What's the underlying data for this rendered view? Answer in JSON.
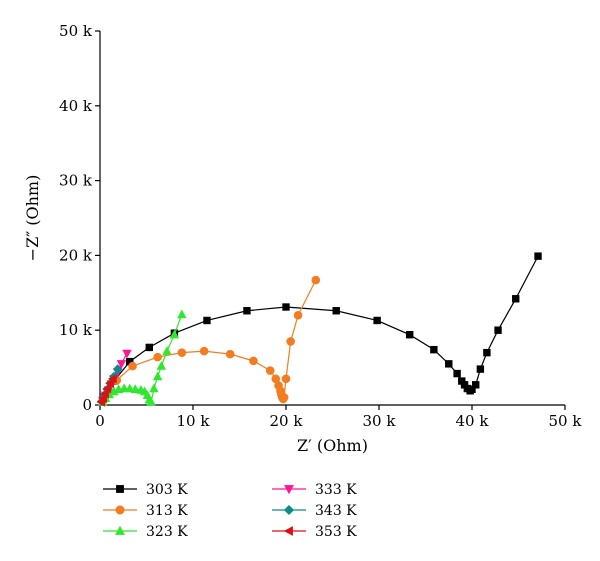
{
  "chart_data": {
    "type": "scatter",
    "title": "",
    "xlabel": "Z′ (Ohm)",
    "ylabel": "−Z″ (Ohm)",
    "xlim": [
      0,
      50000
    ],
    "ylim": [
      0,
      50000
    ],
    "x_ticks": [
      0,
      10000,
      20000,
      30000,
      40000,
      50000
    ],
    "y_ticks": [
      0,
      10000,
      20000,
      30000,
      40000,
      50000
    ],
    "x_tick_labels": [
      "0",
      "10 k",
      "20 k",
      "30 k",
      "40 k",
      "50 k"
    ],
    "y_tick_labels": [
      "0",
      "10 k",
      "20 k",
      "30 k",
      "40 k",
      "50 k"
    ],
    "grid": false,
    "legend_position": "bottom-left, below plot",
    "series": [
      {
        "name": "303 K",
        "color": "#000000",
        "marker": "square",
        "x": [
          800,
          1500,
          3200,
          5300,
          8000,
          11500,
          15800,
          20000,
          25400,
          29800,
          33300,
          35900,
          37500,
          38400,
          38900,
          39200,
          39500,
          39800,
          40000,
          40400,
          40900,
          41600,
          42800,
          44700,
          47100
        ],
        "y": [
          1500,
          3200,
          5800,
          7700,
          9600,
          11300,
          12600,
          13100,
          12600,
          11300,
          9400,
          7400,
          5500,
          4200,
          3200,
          2700,
          2200,
          1900,
          2100,
          2700,
          4800,
          7000,
          10000,
          14200,
          19900
        ]
      },
      {
        "name": "313 K",
        "color": "#f47c20",
        "marker": "circle",
        "x": [
          500,
          1000,
          1800,
          3500,
          6200,
          8800,
          11200,
          14000,
          16500,
          18300,
          18900,
          19200,
          19400,
          19500,
          19600,
          19700,
          19800,
          20000,
          20500,
          21300,
          23200
        ],
        "y": [
          800,
          1800,
          3300,
          5200,
          6400,
          7000,
          7200,
          6800,
          5900,
          4600,
          3500,
          2600,
          1900,
          1400,
          1000,
          800,
          1000,
          3500,
          8500,
          12000,
          16700
        ]
      },
      {
        "name": "323 K",
        "color": "#2ee82e",
        "marker": "triangle-up",
        "x": [
          300,
          600,
          1000,
          1500,
          2000,
          2600,
          3200,
          3800,
          4400,
          4800,
          5100,
          5300,
          5500,
          5800,
          6200,
          6600,
          7200,
          8000,
          8800
        ],
        "y": [
          400,
          900,
          1400,
          1800,
          2100,
          2200,
          2200,
          2100,
          2000,
          1800,
          1300,
          700,
          400,
          2200,
          3800,
          5200,
          7200,
          9400,
          12100
        ]
      },
      {
        "name": "333 K",
        "color": "#ff1493",
        "marker": "triangle-down",
        "x": [
          300,
          600,
          900,
          1200,
          1500,
          1900,
          2300,
          2900
        ],
        "y": [
          600,
          1300,
          2000,
          2800,
          3500,
          4400,
          5500,
          6900
        ]
      },
      {
        "name": "343 K",
        "color": "#0e8b8b",
        "marker": "diamond",
        "x": [
          200,
          500,
          800,
          1100,
          1500,
          1900
        ],
        "y": [
          500,
          1300,
          2100,
          2900,
          3800,
          4800
        ]
      },
      {
        "name": "353 K",
        "color": "#e01010",
        "marker": "triangle-left",
        "x": [
          150,
          350,
          550,
          800,
          1100,
          1400
        ],
        "y": [
          400,
          900,
          1500,
          2200,
          2900,
          3500
        ]
      }
    ]
  }
}
